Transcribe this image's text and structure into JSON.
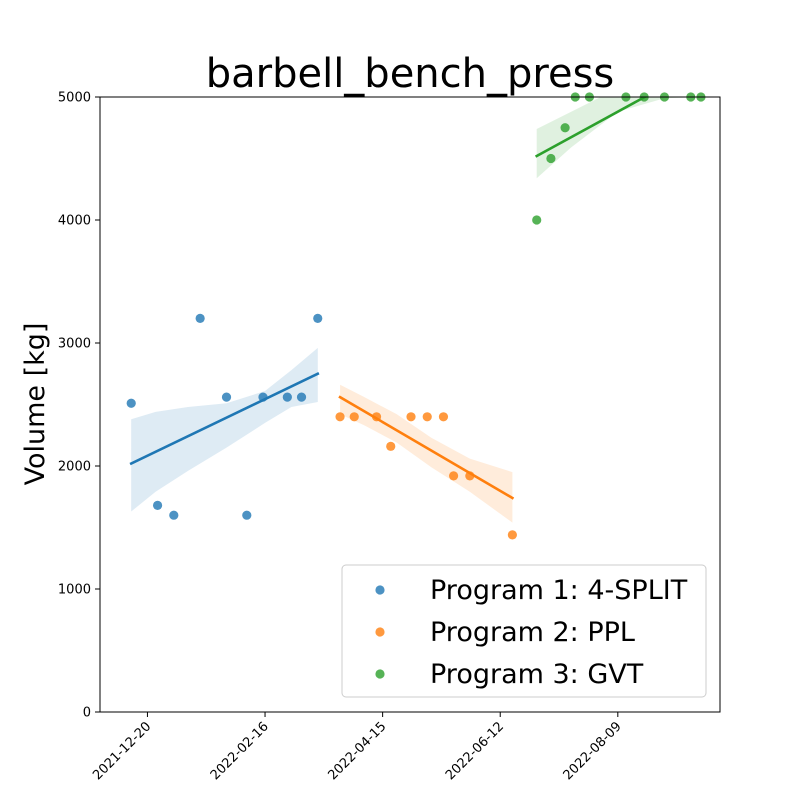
{
  "chart_data": {
    "type": "scatter",
    "title": "barbell_bench_press",
    "xlabel": "",
    "ylabel": "Volume [kg]",
    "x_axis": {
      "type": "date",
      "range": [
        "2021-12-06",
        "2022-09-19"
      ],
      "tick_labels": [
        "2021-12-20",
        "2022-02-16",
        "2022-04-15",
        "2022-06-12",
        "2022-08-09"
      ]
    },
    "y_axis": {
      "range": [
        0,
        5000
      ],
      "tick_labels": [
        "0",
        "1000",
        "2000",
        "3000",
        "4000",
        "5000"
      ]
    },
    "grid": false,
    "legend_position": "lower-right",
    "series": [
      {
        "name": "Program 1: 4-SPLIT",
        "color": "#1f77b4",
        "points": [
          {
            "x": "2021-12-12",
            "y": 2510
          },
          {
            "x": "2021-12-25",
            "y": 1680
          },
          {
            "x": "2022-01-02",
            "y": 1600
          },
          {
            "x": "2022-01-15",
            "y": 3200
          },
          {
            "x": "2022-01-28",
            "y": 2560
          },
          {
            "x": "2022-02-07",
            "y": 1600
          },
          {
            "x": "2022-02-15",
            "y": 2560
          },
          {
            "x": "2022-02-27",
            "y": 2560
          },
          {
            "x": "2022-03-06",
            "y": 2560
          },
          {
            "x": "2022-03-14",
            "y": 3200
          }
        ],
        "trend": {
          "x": [
            "2021-12-12",
            "2022-03-14"
          ],
          "y": [
            2020,
            2750
          ]
        },
        "band": {
          "x": [
            "2021-12-12",
            "2021-12-24",
            "2022-01-09",
            "2022-01-28",
            "2022-02-16",
            "2022-03-01",
            "2022-03-14"
          ],
          "upper": [
            2380,
            2440,
            2480,
            2510,
            2610,
            2780,
            2960
          ],
          "lower": [
            1630,
            1790,
            1960,
            2150,
            2350,
            2480,
            2520
          ]
        }
      },
      {
        "name": "Program 2: PPL",
        "color": "#ff7f0e",
        "points": [
          {
            "x": "2022-03-25",
            "y": 2400
          },
          {
            "x": "2022-04-01",
            "y": 2400
          },
          {
            "x": "2022-04-12",
            "y": 2400
          },
          {
            "x": "2022-04-19",
            "y": 2160
          },
          {
            "x": "2022-04-29",
            "y": 2400
          },
          {
            "x": "2022-05-07",
            "y": 2400
          },
          {
            "x": "2022-05-15",
            "y": 2400
          },
          {
            "x": "2022-05-20",
            "y": 1920
          },
          {
            "x": "2022-05-28",
            "y": 1920
          },
          {
            "x": "2022-06-18",
            "y": 1440
          }
        ],
        "trend": {
          "x": [
            "2022-03-25",
            "2022-06-18"
          ],
          "y": [
            2560,
            1740
          ]
        },
        "band": {
          "x": [
            "2022-03-25",
            "2022-04-06",
            "2022-04-22",
            "2022-05-09",
            "2022-05-28",
            "2022-06-18"
          ],
          "upper": [
            2660,
            2560,
            2420,
            2230,
            2060,
            1950
          ],
          "lower": [
            2420,
            2330,
            2190,
            1990,
            1790,
            1540
          ]
        }
      },
      {
        "name": "Program 3: GVT",
        "color": "#2ca02c",
        "points": [
          {
            "x": "2022-06-30",
            "y": 4000
          },
          {
            "x": "2022-07-07",
            "y": 4500
          },
          {
            "x": "2022-07-14",
            "y": 4750
          },
          {
            "x": "2022-07-19",
            "y": 5000
          },
          {
            "x": "2022-07-26",
            "y": 5000
          },
          {
            "x": "2022-08-13",
            "y": 5000
          },
          {
            "x": "2022-08-22",
            "y": 5000
          },
          {
            "x": "2022-09-01",
            "y": 5000
          },
          {
            "x": "2022-09-14",
            "y": 5000
          },
          {
            "x": "2022-09-19",
            "y": 5000
          }
        ],
        "trend": {
          "x": [
            "2022-06-30",
            "2022-09-19"
          ],
          "y": [
            4520,
            5250
          ]
        },
        "band": {
          "x": [
            "2022-06-30",
            "2022-07-17",
            "2022-08-09",
            "2022-09-01",
            "2022-09-19"
          ],
          "upper": [
            4740,
            4880,
            5070,
            5180,
            5300
          ],
          "lower": [
            4340,
            4590,
            4880,
            4990,
            5000
          ]
        }
      }
    ]
  }
}
